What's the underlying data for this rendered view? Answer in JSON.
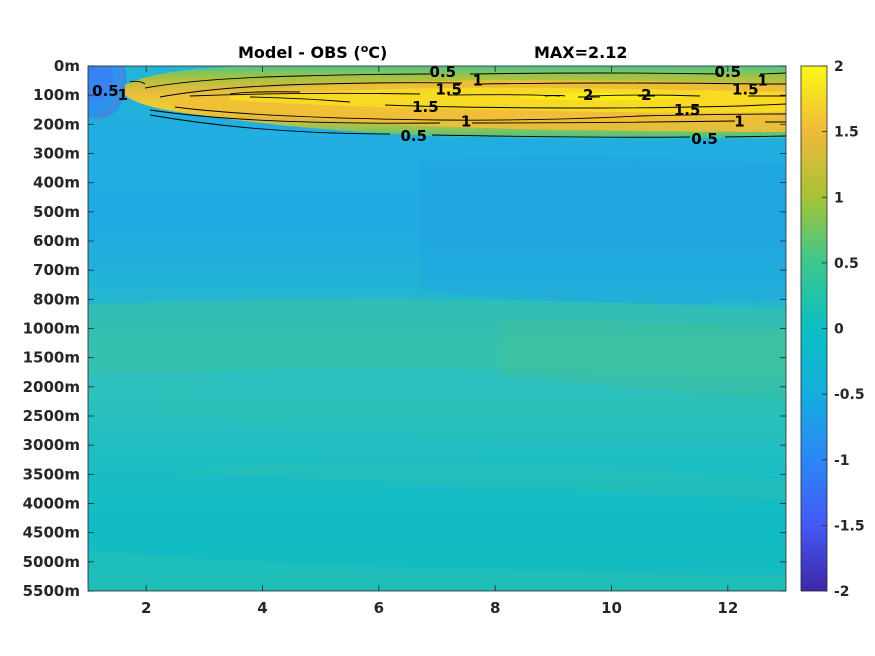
{
  "chart_data": {
    "type": "heatmap",
    "title_left": "Model - OBS (",
    "title_sup": "o",
    "title_unit_end": "C)",
    "title_right": "MAX=2.12",
    "x_ticks": [
      2,
      4,
      6,
      8,
      10,
      12
    ],
    "xlim": [
      1,
      13
    ],
    "y_labels": [
      "0m",
      "100m",
      "200m",
      "300m",
      "400m",
      "500m",
      "600m",
      "700m",
      "800m",
      "1000m",
      "1500m",
      "2000m",
      "2500m",
      "3000m",
      "3500m",
      "4000m",
      "4500m",
      "5000m",
      "5500m"
    ],
    "colorbar": {
      "ticks": [
        2,
        1.5,
        1,
        0.5,
        0,
        -0.5,
        -1,
        -1.5,
        -2
      ],
      "tick_labels": [
        "2",
        "1.5",
        "1",
        "0.5",
        "0",
        "-0.5",
        "-1",
        "-1.5",
        "-2"
      ],
      "range": [
        -2,
        2
      ],
      "colormap": "parula"
    },
    "contour_labels": [
      {
        "text": "0.5",
        "x": 7.1,
        "y": 0.2
      },
      {
        "text": "1",
        "x": 7.7,
        "y": 0.5
      },
      {
        "text": "0.5",
        "x": 12.0,
        "y": 0.2
      },
      {
        "text": "1",
        "x": 12.6,
        "y": 0.5
      },
      {
        "text": "0.5",
        "x": 1.3,
        "y": 0.85
      },
      {
        "text": "1",
        "x": 1.6,
        "y": 1.0
      },
      {
        "text": "1.5",
        "x": 7.2,
        "y": 0.8
      },
      {
        "text": "1.5",
        "x": 6.8,
        "y": 1.4
      },
      {
        "text": "1.5",
        "x": 11.3,
        "y": 1.5
      },
      {
        "text": "1.5",
        "x": 12.3,
        "y": 0.8
      },
      {
        "text": "2",
        "x": 9.6,
        "y": 1.0
      },
      {
        "text": "2",
        "x": 10.6,
        "y": 1.0
      },
      {
        "text": "1",
        "x": 7.5,
        "y": 1.9
      },
      {
        "text": "1",
        "x": 12.2,
        "y": 1.9
      },
      {
        "text": "0.5",
        "x": 6.6,
        "y": 2.4
      },
      {
        "text": "0.5",
        "x": 11.6,
        "y": 2.5
      }
    ],
    "field_description_levels": {
      "surface_core_max": 2.12,
      "background_upper": -0.3,
      "background_deep": 0.1
    }
  }
}
